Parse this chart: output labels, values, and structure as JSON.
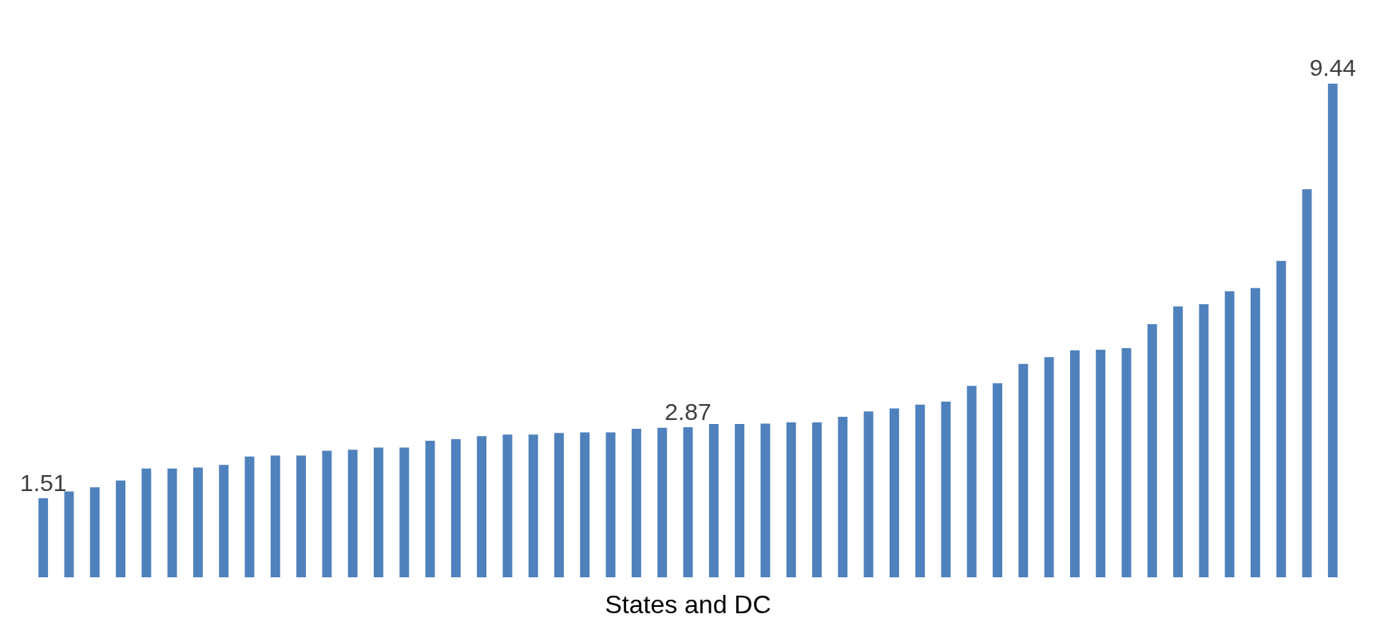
{
  "chart_data": {
    "type": "bar",
    "xlabel": "States and DC",
    "categories": [
      null,
      null,
      null,
      null,
      null,
      null,
      null,
      null,
      null,
      null,
      null,
      null,
      null,
      null,
      null,
      null,
      null,
      null,
      null,
      null,
      null,
      null,
      null,
      null,
      null,
      null,
      null,
      null,
      null,
      null,
      null,
      null,
      null,
      null,
      null,
      null,
      null,
      null,
      null,
      null,
      null,
      null,
      null,
      null,
      null,
      null,
      null,
      null,
      null,
      null,
      null
    ],
    "values": [
      1.51,
      1.64,
      1.72,
      1.85,
      2.08,
      2.08,
      2.1,
      2.15,
      2.31,
      2.33,
      2.33,
      2.42,
      2.44,
      2.48,
      2.48,
      2.61,
      2.64,
      2.7,
      2.73,
      2.73,
      2.76,
      2.77,
      2.77,
      2.84,
      2.86,
      2.87,
      2.93,
      2.93,
      2.94,
      2.96,
      2.96,
      3.07,
      3.17,
      3.23,
      3.3,
      3.36,
      3.66,
      3.71,
      4.08,
      4.21,
      4.34,
      4.35,
      4.38,
      4.84,
      5.18,
      5.22,
      5.47,
      5.53,
      6.05,
      7.42,
      9.44
    ],
    "value_labels": [
      "1.51",
      null,
      null,
      null,
      null,
      null,
      null,
      null,
      null,
      null,
      null,
      null,
      null,
      null,
      null,
      null,
      null,
      null,
      null,
      null,
      null,
      null,
      null,
      null,
      null,
      "2.87",
      null,
      null,
      null,
      null,
      null,
      null,
      null,
      null,
      null,
      null,
      null,
      null,
      null,
      null,
      null,
      null,
      null,
      null,
      null,
      null,
      null,
      null,
      null,
      null,
      "9.44"
    ],
    "color": "#4f81bd"
  }
}
